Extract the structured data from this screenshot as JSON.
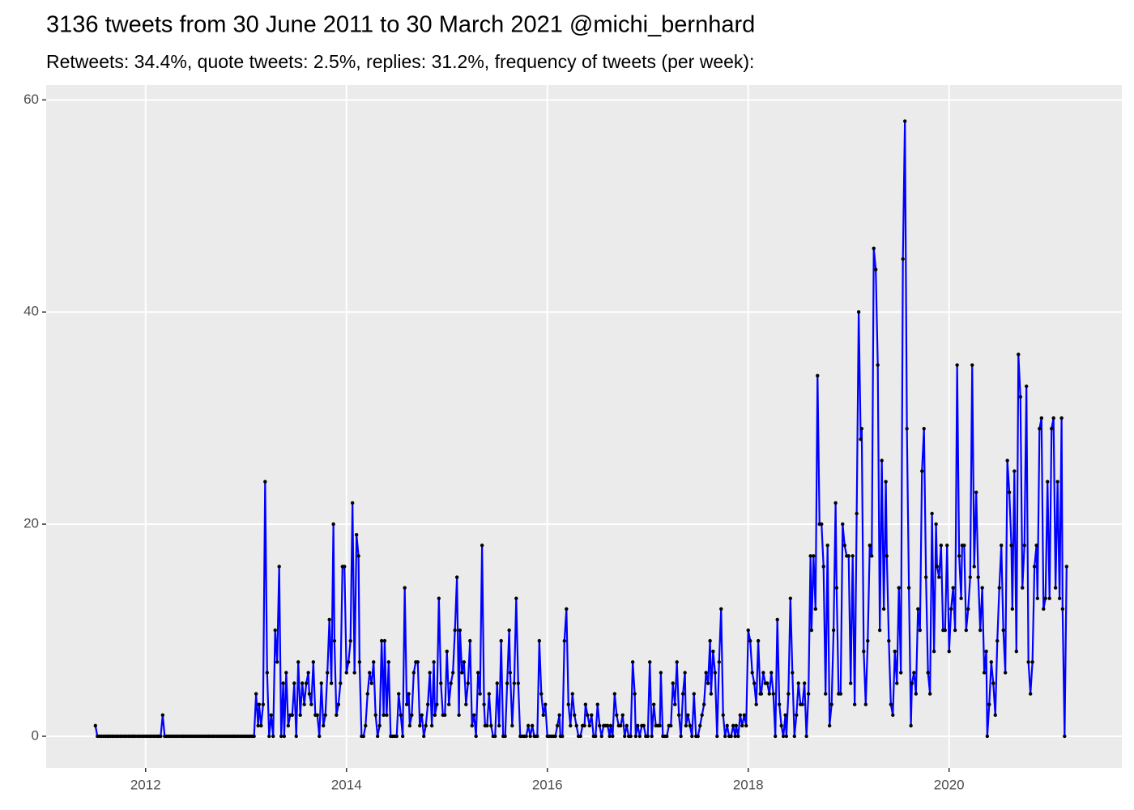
{
  "chart_data": {
    "type": "line",
    "title": "3136 tweets from 30 June 2011 to 30 March 2021 @michi_bernhard",
    "subtitle": "Retweets: 34.4%, quote tweets: 2.5%, replies: 31.2%, frequency of tweets (per week):",
    "color": "#0000ff",
    "point_color": "#000000",
    "grid": true,
    "xlim": [
      2011.01,
      2021.72
    ],
    "xticks": [
      2012,
      2014,
      2016,
      2018,
      2020
    ],
    "ylim": [
      -2.98,
      61.4
    ],
    "yticks": [
      0,
      20,
      40,
      60
    ],
    "x": [
      2011.5,
      2011.52,
      2011.54,
      2011.56,
      2011.58,
      2011.6,
      2011.62,
      2011.63,
      2011.65,
      2011.67,
      2011.69,
      2011.71,
      2011.73,
      2011.75,
      2011.77,
      2011.79,
      2011.81,
      2011.83,
      2011.85,
      2011.87,
      2011.88,
      2011.9,
      2011.92,
      2011.94,
      2011.96,
      2011.98,
      2012.0,
      2012.02,
      2012.04,
      2012.06,
      2012.08,
      2012.1,
      2012.12,
      2012.13,
      2012.15,
      2012.17,
      2012.19,
      2012.21,
      2012.23,
      2012.25,
      2012.27,
      2012.29,
      2012.31,
      2012.33,
      2012.35,
      2012.37,
      2012.38,
      2012.4,
      2012.42,
      2012.44,
      2012.46,
      2012.48,
      2012.5,
      2012.52,
      2012.54,
      2012.56,
      2012.58,
      2012.6,
      2012.62,
      2012.63,
      2012.65,
      2012.67,
      2012.69,
      2012.71,
      2012.73,
      2012.75,
      2012.77,
      2012.79,
      2012.81,
      2012.83,
      2012.85,
      2012.87,
      2012.88,
      2012.9,
      2012.92,
      2012.94,
      2012.96,
      2012.98,
      2013.0,
      2013.02,
      2013.04,
      2013.06,
      2013.08,
      2013.1,
      2013.12,
      2013.13,
      2013.15,
      2013.17,
      2013.19,
      2013.21,
      2013.23,
      2013.25,
      2013.27,
      2013.29,
      2013.31,
      2013.33,
      2013.35,
      2013.37,
      2013.38,
      2013.4,
      2013.42,
      2013.44,
      2013.46,
      2013.48,
      2013.5,
      2013.52,
      2013.54,
      2013.56,
      2013.58,
      2013.6,
      2013.62,
      2013.63,
      2013.65,
      2013.67,
      2013.69,
      2013.71,
      2013.73,
      2013.75,
      2013.77,
      2013.79,
      2013.81,
      2013.83,
      2013.85,
      2013.87,
      2013.88,
      2013.9,
      2013.92,
      2013.94,
      2013.96,
      2013.98,
      2014.0,
      2014.02,
      2014.04,
      2014.06,
      2014.08,
      2014.1,
      2014.12,
      2014.13,
      2014.15,
      2014.17,
      2014.19,
      2014.21,
      2014.23,
      2014.25,
      2014.27,
      2014.29,
      2014.31,
      2014.33,
      2014.35,
      2014.37,
      2014.38,
      2014.4,
      2014.42,
      2014.44,
      2014.46,
      2014.48,
      2014.5,
      2014.52,
      2014.54,
      2014.56,
      2014.58,
      2014.6,
      2014.62,
      2014.63,
      2014.65,
      2014.67,
      2014.69,
      2014.71,
      2014.73,
      2014.75,
      2014.77,
      2014.79,
      2014.81,
      2014.83,
      2014.85,
      2014.87,
      2014.88,
      2014.9,
      2014.92,
      2014.94,
      2014.96,
      2014.98,
      2015.0,
      2015.02,
      2015.04,
      2015.06,
      2015.08,
      2015.1,
      2015.12,
      2015.13,
      2015.15,
      2015.17,
      2015.19,
      2015.21,
      2015.23,
      2015.25,
      2015.27,
      2015.29,
      2015.31,
      2015.33,
      2015.35,
      2015.37,
      2015.38,
      2015.4,
      2015.42,
      2015.44,
      2015.46,
      2015.48,
      2015.5,
      2015.52,
      2015.54,
      2015.56,
      2015.58,
      2015.6,
      2015.62,
      2015.63,
      2015.65,
      2015.67,
      2015.69,
      2015.71,
      2015.73,
      2015.75,
      2015.77,
      2015.79,
      2015.81,
      2015.83,
      2015.85,
      2015.87,
      2015.88,
      2015.9,
      2015.92,
      2015.94,
      2015.96,
      2015.98,
      2016.0,
      2016.02,
      2016.04,
      2016.06,
      2016.08,
      2016.1,
      2016.12,
      2016.13,
      2016.15,
      2016.17,
      2016.19,
      2016.21,
      2016.23,
      2016.25,
      2016.27,
      2016.29,
      2016.31,
      2016.33,
      2016.35,
      2016.37,
      2016.38,
      2016.4,
      2016.42,
      2016.44,
      2016.46,
      2016.48,
      2016.5,
      2016.52,
      2016.54,
      2016.56,
      2016.58,
      2016.6,
      2016.62,
      2016.63,
      2016.65,
      2016.67,
      2016.69,
      2016.71,
      2016.73,
      2016.75,
      2016.77,
      2016.79,
      2016.81,
      2016.83,
      2016.85,
      2016.87,
      2016.88,
      2016.9,
      2016.92,
      2016.94,
      2016.96,
      2016.98,
      2017.0,
      2017.02,
      2017.04,
      2017.06,
      2017.08,
      2017.1,
      2017.12,
      2017.13,
      2017.15,
      2017.17,
      2017.19,
      2017.21,
      2017.23,
      2017.25,
      2017.27,
      2017.29,
      2017.31,
      2017.33,
      2017.35,
      2017.37,
      2017.38,
      2017.4,
      2017.42,
      2017.44,
      2017.46,
      2017.48,
      2017.5,
      2017.52,
      2017.54,
      2017.56,
      2017.58,
      2017.6,
      2017.62,
      2017.63,
      2017.65,
      2017.67,
      2017.69,
      2017.71,
      2017.73,
      2017.75,
      2017.77,
      2017.79,
      2017.81,
      2017.83,
      2017.85,
      2017.87,
      2017.88,
      2017.9,
      2017.92,
      2017.94,
      2017.96,
      2017.98,
      2018.0,
      2018.02,
      2018.04,
      2018.06,
      2018.08,
      2018.1,
      2018.12,
      2018.13,
      2018.15,
      2018.17,
      2018.19,
      2018.21,
      2018.23,
      2018.25,
      2018.27,
      2018.29,
      2018.31,
      2018.33,
      2018.35,
      2018.37,
      2018.38,
      2018.4,
      2018.42,
      2018.44,
      2018.46,
      2018.48,
      2018.5,
      2018.52,
      2018.54,
      2018.56,
      2018.58,
      2018.6,
      2018.62,
      2018.63,
      2018.65,
      2018.67,
      2018.69,
      2018.71,
      2018.73,
      2018.75,
      2018.77,
      2018.79,
      2018.81,
      2018.83,
      2018.85,
      2018.87,
      2018.88,
      2018.9,
      2018.92,
      2018.94,
      2018.96,
      2018.98,
      2019.0,
      2019.02,
      2019.04,
      2019.06,
      2019.08,
      2019.1,
      2019.12,
      2019.13,
      2019.15,
      2019.17,
      2019.19,
      2019.21,
      2019.23,
      2019.25,
      2019.27,
      2019.29,
      2019.31,
      2019.33,
      2019.35,
      2019.37,
      2019.38,
      2019.4,
      2019.42,
      2019.44,
      2019.46,
      2019.48,
      2019.5,
      2019.52,
      2019.54,
      2019.56,
      2019.58,
      2019.6,
      2019.62,
      2019.63,
      2019.65,
      2019.67,
      2019.69,
      2019.71,
      2019.73,
      2019.75,
      2019.77,
      2019.79,
      2019.81,
      2019.83,
      2019.85,
      2019.87,
      2019.88,
      2019.9,
      2019.92,
      2019.94,
      2019.96,
      2019.98,
      2020.0,
      2020.02,
      2020.04,
      2020.06,
      2020.08,
      2020.1,
      2020.12,
      2020.13,
      2020.15,
      2020.17,
      2020.19,
      2020.21,
      2020.23,
      2020.25,
      2020.27,
      2020.29,
      2020.31,
      2020.33,
      2020.35,
      2020.37,
      2020.38,
      2020.4,
      2020.42,
      2020.44,
      2020.46,
      2020.48,
      2020.5,
      2020.52,
      2020.54,
      2020.56,
      2020.58,
      2020.6,
      2020.62,
      2020.63,
      2020.65,
      2020.67,
      2020.69,
      2020.71,
      2020.73,
      2020.75,
      2020.77,
      2020.79,
      2020.81,
      2020.83,
      2020.85,
      2020.87,
      2020.88,
      2020.9,
      2020.92,
      2020.94,
      2020.96,
      2020.98,
      2021.0,
      2021.02,
      2021.04,
      2021.06,
      2021.08,
      2021.1,
      2021.12,
      2021.13,
      2021.15,
      2021.17
    ],
    "values": [
      1,
      0,
      0,
      0,
      0,
      0,
      0,
      0,
      0,
      0,
      0,
      0,
      0,
      0,
      0,
      0,
      0,
      0,
      0,
      0,
      0,
      0,
      0,
      0,
      0,
      0,
      0,
      0,
      0,
      0,
      0,
      0,
      0,
      0,
      0,
      2,
      0,
      0,
      0,
      0,
      0,
      0,
      0,
      0,
      0,
      0,
      0,
      0,
      0,
      0,
      0,
      0,
      0,
      0,
      0,
      0,
      0,
      0,
      0,
      0,
      0,
      0,
      0,
      0,
      0,
      0,
      0,
      0,
      0,
      0,
      0,
      0,
      0,
      0,
      0,
      0,
      0,
      0,
      0,
      0,
      0,
      0,
      0,
      4,
      1,
      3,
      1,
      3,
      24,
      6,
      0,
      2,
      0,
      10,
      7,
      16,
      0,
      5,
      0,
      6,
      1,
      2,
      2,
      5,
      0,
      7,
      2,
      5,
      3,
      5,
      6,
      4,
      3,
      7,
      2,
      2,
      0,
      5,
      1,
      2,
      6,
      11,
      5,
      20,
      9,
      2,
      3,
      5,
      16,
      16,
      6,
      7,
      9,
      22,
      6,
      19,
      17,
      7,
      0,
      0,
      1,
      4,
      6,
      5,
      7,
      2,
      0,
      1,
      9,
      2,
      9,
      2,
      7,
      0,
      0,
      0,
      0,
      4,
      2,
      0,
      14,
      3,
      4,
      1,
      2,
      6,
      7,
      7,
      1,
      2,
      0,
      1,
      3,
      6,
      1,
      7,
      2,
      3,
      13,
      5,
      2,
      2,
      8,
      3,
      5,
      6,
      10,
      15,
      2,
      10,
      6,
      7,
      3,
      5,
      9,
      1,
      2,
      0,
      6,
      4,
      18,
      3,
      1,
      1,
      4,
      1,
      0,
      0,
      5,
      1,
      9,
      0,
      0,
      5,
      10,
      6,
      1,
      5,
      13,
      5,
      0,
      0,
      0,
      0,
      1,
      0,
      1,
      0,
      0,
      0,
      9,
      4,
      2,
      3,
      0,
      0,
      0,
      0,
      0,
      1,
      2,
      0,
      0,
      9,
      12,
      3,
      1,
      4,
      2,
      1,
      0,
      0,
      1,
      1,
      3,
      2,
      1,
      2,
      0,
      0,
      3,
      1,
      0,
      1,
      1,
      1,
      0,
      1,
      0,
      4,
      2,
      1,
      1,
      2,
      0,
      1,
      0,
      0,
      7,
      4,
      0,
      1,
      0,
      1,
      1,
      0,
      0,
      7,
      0,
      3,
      1,
      1,
      1,
      6,
      0,
      0,
      0,
      1,
      1,
      5,
      3,
      7,
      2,
      0,
      4,
      6,
      1,
      2,
      1,
      0,
      4,
      0,
      0,
      1,
      2,
      3,
      6,
      5,
      9,
      4,
      8,
      6,
      0,
      7,
      12,
      2,
      0,
      1,
      0,
      0,
      1,
      0,
      1,
      0,
      2,
      1,
      2,
      1,
      10,
      9,
      6,
      5,
      3,
      9,
      4,
      4,
      6,
      5,
      5,
      4,
      6,
      4,
      0,
      11,
      3,
      1,
      0,
      2,
      0,
      4,
      13,
      6,
      0,
      2,
      5,
      3,
      3,
      5,
      0,
      4,
      17,
      10,
      17,
      12,
      34,
      20,
      20,
      16,
      4,
      18,
      1,
      3,
      10,
      22,
      14,
      4,
      4,
      20,
      18,
      17,
      17,
      5,
      17,
      3,
      21,
      40,
      28,
      29,
      8,
      3,
      9,
      18,
      17,
      46,
      44,
      35,
      10,
      26,
      12,
      24,
      17,
      9,
      3,
      2,
      8,
      5,
      14,
      6,
      45,
      58,
      29,
      14,
      1,
      5,
      6,
      4,
      12,
      10,
      25,
      29,
      15,
      6,
      4,
      21,
      8,
      20,
      16,
      15,
      18,
      10,
      10,
      18,
      8,
      12,
      14,
      10,
      35,
      17,
      13,
      18,
      18,
      10,
      12,
      15,
      35,
      16,
      23,
      15,
      10,
      14,
      6,
      8,
      0,
      3,
      7,
      5,
      2,
      9,
      14,
      18,
      10,
      6,
      26,
      23,
      18,
      12,
      25,
      8,
      36,
      32,
      14,
      18,
      33,
      7,
      4,
      7,
      16,
      18,
      13,
      29,
      30,
      12,
      13,
      24,
      13,
      29,
      30,
      14,
      24,
      13,
      30,
      12,
      0,
      16
    ]
  }
}
